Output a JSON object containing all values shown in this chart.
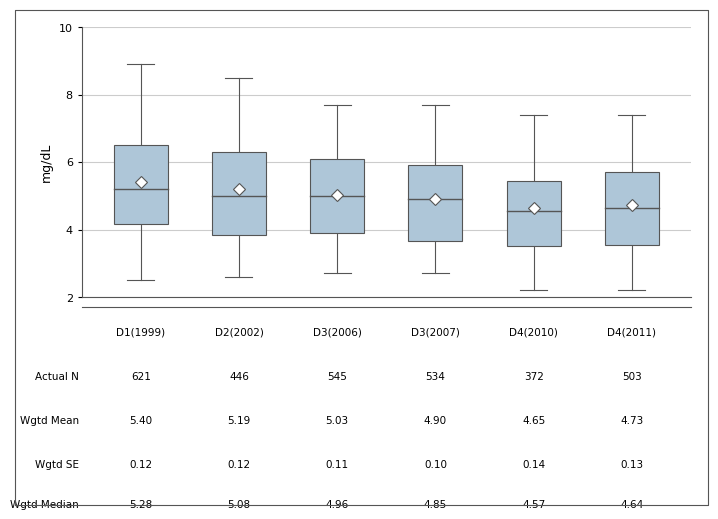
{
  "categories": [
    "D1(1999)",
    "D2(2002)",
    "D3(2006)",
    "D3(2007)",
    "D4(2010)",
    "D4(2011)"
  ],
  "boxes": [
    {
      "whislo": 2.5,
      "q1": 4.15,
      "med": 5.2,
      "q3": 6.5,
      "whishi": 8.9,
      "mean": 5.4
    },
    {
      "whislo": 2.6,
      "q1": 3.85,
      "med": 5.0,
      "q3": 6.3,
      "whishi": 8.5,
      "mean": 5.19
    },
    {
      "whislo": 2.7,
      "q1": 3.9,
      "med": 5.0,
      "q3": 6.1,
      "whishi": 7.7,
      "mean": 5.03
    },
    {
      "whislo": 2.7,
      "q1": 3.65,
      "med": 4.9,
      "q3": 5.9,
      "whishi": 7.7,
      "mean": 4.9
    },
    {
      "whislo": 2.2,
      "q1": 3.5,
      "med": 4.55,
      "q3": 5.45,
      "whishi": 7.4,
      "mean": 4.65
    },
    {
      "whislo": 2.2,
      "q1": 3.55,
      "med": 4.65,
      "q3": 5.7,
      "whishi": 7.4,
      "mean": 4.73
    }
  ],
  "table_rows": [
    {
      "label": "Actual N",
      "values": [
        "621",
        "446",
        "545",
        "534",
        "372",
        "503"
      ]
    },
    {
      "label": "Wgtd Mean",
      "values": [
        "5.40",
        "5.19",
        "5.03",
        "4.90",
        "4.65",
        "4.73"
      ]
    },
    {
      "label": "Wgtd SE",
      "values": [
        "0.12",
        "0.12",
        "0.11",
        "0.10",
        "0.14",
        "0.13"
      ]
    },
    {
      "label": "Wgtd Median",
      "values": [
        "5.28",
        "5.08",
        "4.96",
        "4.85",
        "4.57",
        "4.64"
      ]
    }
  ],
  "ylabel": "mg/dL",
  "ylim": [
    2,
    10
  ],
  "yticks": [
    2,
    4,
    6,
    8,
    10
  ],
  "box_color": "#aec6d8",
  "box_edge_color": "#555555",
  "whisker_color": "#555555",
  "median_color": "#555555",
  "mean_marker": "D",
  "mean_marker_color": "white",
  "mean_marker_edge_color": "#555555",
  "background_color": "#ffffff",
  "grid_color": "#cccccc",
  "border_color": "#555555"
}
